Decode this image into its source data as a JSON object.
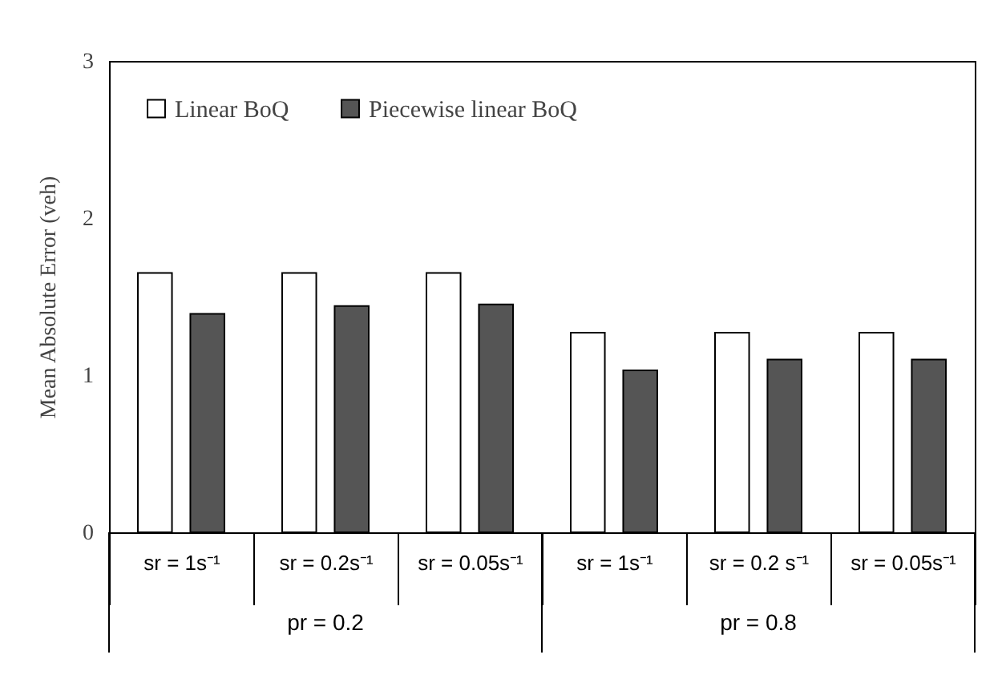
{
  "chart_data": {
    "type": "bar",
    "ylabel": "Mean Absolute Error (veh)",
    "categories": [
      "sr = 1s⁻¹",
      "sr = 0.2s⁻¹",
      "sr = 0.05s⁻¹",
      "sr = 1s⁻¹",
      "sr = 0.2 s⁻¹",
      "sr = 0.05s⁻¹"
    ],
    "series": [
      {
        "name": "Linear BoQ",
        "color": "#ffffff",
        "values": [
          1.65,
          1.65,
          1.65,
          1.27,
          1.27,
          1.27
        ]
      },
      {
        "name": "Piecewise linear BoQ",
        "color": "#555555",
        "values": [
          1.39,
          1.44,
          1.45,
          1.03,
          1.1,
          1.1
        ]
      }
    ],
    "annotations": [
      "pr = 0.2",
      "pr = 0.8"
    ],
    "ylim": [
      0,
      3
    ],
    "yticks": [
      0,
      1,
      2,
      3
    ],
    "grid": false,
    "legend": "top left"
  }
}
